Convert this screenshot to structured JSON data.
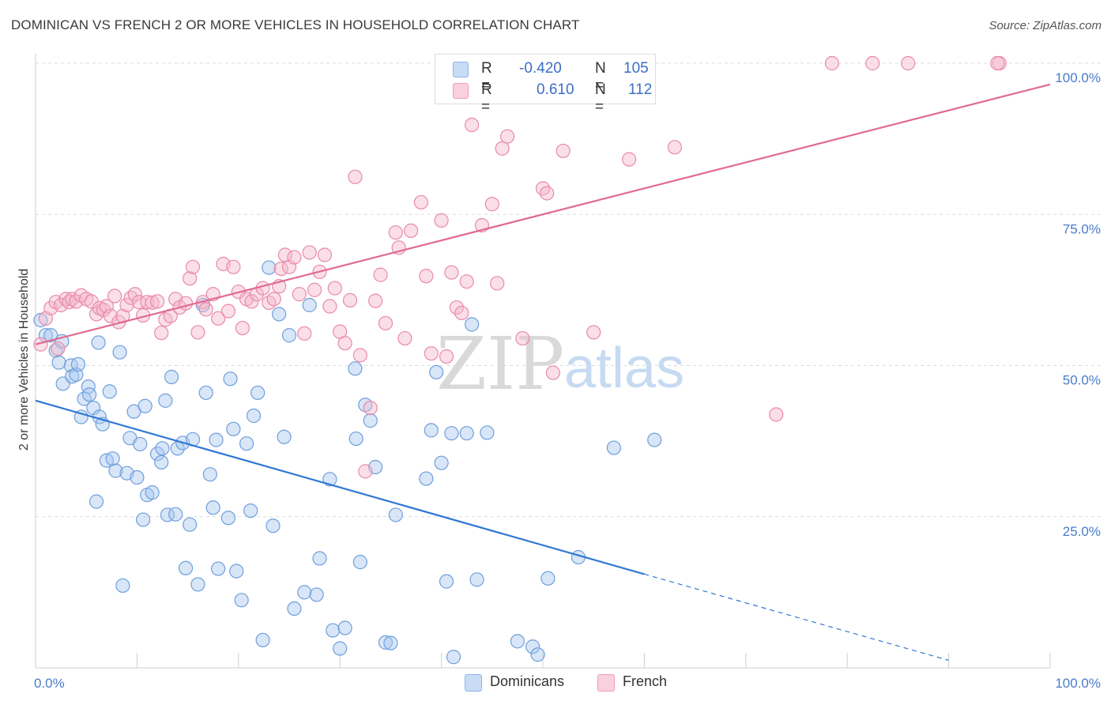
{
  "title": "DOMINICAN VS FRENCH 2 OR MORE VEHICLES IN HOUSEHOLD CORRELATION CHART",
  "source": "Source: ZipAtlas.com",
  "watermark": {
    "zip": "ZIP",
    "atlas": "atlas"
  },
  "legend": {
    "rows": [
      {
        "r_label": "R =",
        "r_value": "-0.420",
        "n_label": "N =",
        "n_value": "105",
        "color": "#a9c8f0"
      },
      {
        "r_label": "R =",
        "r_value": "0.610",
        "n_label": "N =",
        "n_value": "112",
        "color": "#f5b8cb"
      }
    ]
  },
  "bottom_legend": [
    {
      "label": "Dominicans",
      "color": "#a9c8f0"
    },
    {
      "label": "French",
      "color": "#f5b8cb"
    }
  ],
  "chart_data": {
    "type": "scatter",
    "title": "DOMINICAN VS FRENCH 2 OR MORE VEHICLES IN HOUSEHOLD CORRELATION CHART",
    "xlabel": "",
    "ylabel": "2 or more Vehicles in Household",
    "xlim": [
      0,
      100
    ],
    "ylim": [
      0,
      100
    ],
    "x_tick_labels": [
      "0.0%",
      "100.0%"
    ],
    "y_tick_labels": [
      "25.0%",
      "50.0%",
      "75.0%",
      "100.0%"
    ],
    "y_ticks": [
      25,
      50,
      75,
      100
    ],
    "grid": true,
    "legend_position": "top-center",
    "series": [
      {
        "name": "Dominicans",
        "color": "#a9c8f0",
        "stroke": "#6f9fdc",
        "line_color": "#2f78d4",
        "r": -0.42,
        "n": 105,
        "trend": {
          "x0": 0,
          "y0": 44.2,
          "x1": 60,
          "y1": 15.5,
          "dash_to_x": 100,
          "dash_to_y": -3.5
        },
        "points": [
          [
            0.5,
            57.5
          ],
          [
            1,
            55
          ],
          [
            1.5,
            55
          ],
          [
            2,
            52.5
          ],
          [
            2.3,
            50.5
          ],
          [
            2.6,
            54
          ],
          [
            2.7,
            47
          ],
          [
            3.5,
            50
          ],
          [
            3.6,
            48.2
          ],
          [
            4,
            48.5
          ],
          [
            4.2,
            50.2
          ],
          [
            4.5,
            41.5
          ],
          [
            4.8,
            44.5
          ],
          [
            5.2,
            46.5
          ],
          [
            5.3,
            45.2
          ],
          [
            5.7,
            43
          ],
          [
            6,
            27.5
          ],
          [
            6.3,
            41.5
          ],
          [
            6.6,
            40.3
          ],
          [
            7,
            34.3
          ],
          [
            7.3,
            45.7
          ],
          [
            7.6,
            34.6
          ],
          [
            7.9,
            32.6
          ],
          [
            8.3,
            52.2
          ],
          [
            8.6,
            13.6
          ],
          [
            9,
            32.2
          ],
          [
            9.3,
            38
          ],
          [
            9.7,
            42.4
          ],
          [
            10,
            31.5
          ],
          [
            10.3,
            37
          ],
          [
            10.6,
            24.5
          ],
          [
            10.8,
            43.3
          ],
          [
            11,
            28.6
          ],
          [
            11.5,
            29
          ],
          [
            12,
            35.4
          ],
          [
            12.4,
            34
          ],
          [
            12.8,
            44.2
          ],
          [
            13,
            25.3
          ],
          [
            13.4,
            48.1
          ],
          [
            13.8,
            25.4
          ],
          [
            14,
            36.3
          ],
          [
            14.5,
            37.2
          ],
          [
            14.8,
            16.5
          ],
          [
            15.2,
            23.7
          ],
          [
            15.5,
            37.8
          ],
          [
            16,
            13.8
          ],
          [
            16.5,
            60
          ],
          [
            16.8,
            45.5
          ],
          [
            17.2,
            32
          ],
          [
            17.5,
            26.5
          ],
          [
            17.8,
            37.7
          ],
          [
            18,
            16.4
          ],
          [
            19,
            24.8
          ],
          [
            19.2,
            47.8
          ],
          [
            19.5,
            39.5
          ],
          [
            19.8,
            16
          ],
          [
            20.3,
            11.2
          ],
          [
            20.8,
            37.1
          ],
          [
            21.2,
            26
          ],
          [
            21.5,
            41.7
          ],
          [
            21.9,
            45.5
          ],
          [
            22.4,
            4.6
          ],
          [
            23,
            66.2
          ],
          [
            23.4,
            23.5
          ],
          [
            24,
            58.5
          ],
          [
            24.5,
            38.2
          ],
          [
            25,
            55
          ],
          [
            25.5,
            9.8
          ],
          [
            26.5,
            12.5
          ],
          [
            27,
            60
          ],
          [
            27.7,
            12.1
          ],
          [
            28,
            18.1
          ],
          [
            29,
            31.2
          ],
          [
            29.3,
            6.2
          ],
          [
            30,
            3.2
          ],
          [
            30.5,
            6.6
          ],
          [
            31.5,
            49.5
          ],
          [
            31.6,
            37.9
          ],
          [
            32,
            17.5
          ],
          [
            32.5,
            43.5
          ],
          [
            33,
            40.9
          ],
          [
            33.5,
            33.2
          ],
          [
            34.5,
            4.2
          ],
          [
            35,
            4.1
          ],
          [
            35.5,
            25.3
          ],
          [
            38.5,
            31.3
          ],
          [
            39,
            39.3
          ],
          [
            39.5,
            48.9
          ],
          [
            40,
            33.9
          ],
          [
            40.5,
            14.3
          ],
          [
            41,
            38.8
          ],
          [
            41.2,
            1.8
          ],
          [
            42.5,
            38.8
          ],
          [
            43,
            56.8
          ],
          [
            43.5,
            14.6
          ],
          [
            44.5,
            38.9
          ],
          [
            47.5,
            4.4
          ],
          [
            49,
            3.5
          ],
          [
            49.5,
            2.2
          ],
          [
            50.5,
            14.8
          ],
          [
            53.5,
            18.3
          ],
          [
            57,
            36.4
          ],
          [
            61,
            37.7
          ],
          [
            12.5,
            36.3
          ],
          [
            6.2,
            53.8
          ]
        ]
      },
      {
        "name": "French",
        "color": "#f5b8cb",
        "stroke": "#ea8aa8",
        "line_color": "#e06a92",
        "r": 0.61,
        "n": 112,
        "trend": {
          "x0": 0,
          "y0": 53.5,
          "x1": 100,
          "y1": 96.5
        },
        "points": [
          [
            0.5,
            53.5
          ],
          [
            1,
            57.8
          ],
          [
            1.5,
            59.5
          ],
          [
            2,
            60.5
          ],
          [
            2.2,
            52.8
          ],
          [
            2.5,
            60
          ],
          [
            3,
            61
          ],
          [
            3.3,
            60.5
          ],
          [
            3.6,
            61
          ],
          [
            4,
            60.6
          ],
          [
            4.5,
            61.6
          ],
          [
            5,
            61
          ],
          [
            5.5,
            60.6
          ],
          [
            6,
            58.5
          ],
          [
            6.3,
            59.5
          ],
          [
            6.7,
            59.2
          ],
          [
            7,
            59.8
          ],
          [
            7.4,
            58.2
          ],
          [
            7.8,
            61.5
          ],
          [
            8.2,
            57.2
          ],
          [
            8.6,
            58.2
          ],
          [
            9,
            60
          ],
          [
            9.4,
            61.2
          ],
          [
            9.8,
            61.8
          ],
          [
            10.2,
            60.5
          ],
          [
            10.6,
            58.3
          ],
          [
            11,
            60.5
          ],
          [
            11.5,
            60.4
          ],
          [
            12,
            60.6
          ],
          [
            12.4,
            55.4
          ],
          [
            12.8,
            57.6
          ],
          [
            13.3,
            58.2
          ],
          [
            13.8,
            61
          ],
          [
            14.2,
            59.6
          ],
          [
            14.8,
            60.3
          ],
          [
            15.2,
            64.4
          ],
          [
            15.5,
            66.3
          ],
          [
            16,
            55.5
          ],
          [
            16.5,
            60.5
          ],
          [
            16.8,
            59.3
          ],
          [
            17.5,
            61.8
          ],
          [
            18,
            57.8
          ],
          [
            18.5,
            66.8
          ],
          [
            19,
            59
          ],
          [
            19.5,
            66.3
          ],
          [
            20,
            62.2
          ],
          [
            20.4,
            56.2
          ],
          [
            20.8,
            61
          ],
          [
            21.3,
            60.6
          ],
          [
            21.8,
            61.8
          ],
          [
            22.4,
            62.8
          ],
          [
            23,
            60.4
          ],
          [
            23.5,
            61
          ],
          [
            24,
            63.1
          ],
          [
            24.2,
            66
          ],
          [
            24.6,
            68.3
          ],
          [
            25,
            66.3
          ],
          [
            25.5,
            67.9
          ],
          [
            26,
            61.8
          ],
          [
            26.5,
            55.3
          ],
          [
            27,
            68.7
          ],
          [
            27.5,
            62.5
          ],
          [
            28,
            65.5
          ],
          [
            28.5,
            68.3
          ],
          [
            29,
            59.8
          ],
          [
            29.5,
            62.8
          ],
          [
            30,
            55.6
          ],
          [
            30.5,
            53.7
          ],
          [
            31,
            60.8
          ],
          [
            31.5,
            81.2
          ],
          [
            32,
            51.7
          ],
          [
            32.5,
            32.5
          ],
          [
            33,
            43
          ],
          [
            33.5,
            60.7
          ],
          [
            34,
            65
          ],
          [
            34.5,
            57
          ],
          [
            35.5,
            72
          ],
          [
            35.8,
            69.5
          ],
          [
            36.4,
            54.5
          ],
          [
            37,
            72.3
          ],
          [
            38,
            77
          ],
          [
            38.5,
            64.8
          ],
          [
            39,
            52
          ],
          [
            40,
            74
          ],
          [
            40.5,
            51.5
          ],
          [
            41,
            65.4
          ],
          [
            41.5,
            59.6
          ],
          [
            42,
            58.7
          ],
          [
            42.5,
            63.9
          ],
          [
            43,
            89.8
          ],
          [
            44,
            73.2
          ],
          [
            45,
            76.7
          ],
          [
            45.5,
            63.6
          ],
          [
            46,
            85.9
          ],
          [
            46.5,
            87.9
          ],
          [
            48,
            54.5
          ],
          [
            50,
            79.3
          ],
          [
            50.4,
            78.5
          ],
          [
            51,
            48.8
          ],
          [
            52,
            85.5
          ],
          [
            55,
            55.5
          ],
          [
            58.5,
            84.1
          ],
          [
            63,
            86.1
          ],
          [
            73,
            41.9
          ],
          [
            78.5,
            100
          ],
          [
            82.5,
            100
          ],
          [
            86,
            100
          ],
          [
            95,
            100
          ],
          [
            47.5,
            100
          ],
          [
            50,
            100
          ],
          [
            59.5,
            100
          ],
          [
            94.8,
            100
          ]
        ]
      }
    ]
  }
}
